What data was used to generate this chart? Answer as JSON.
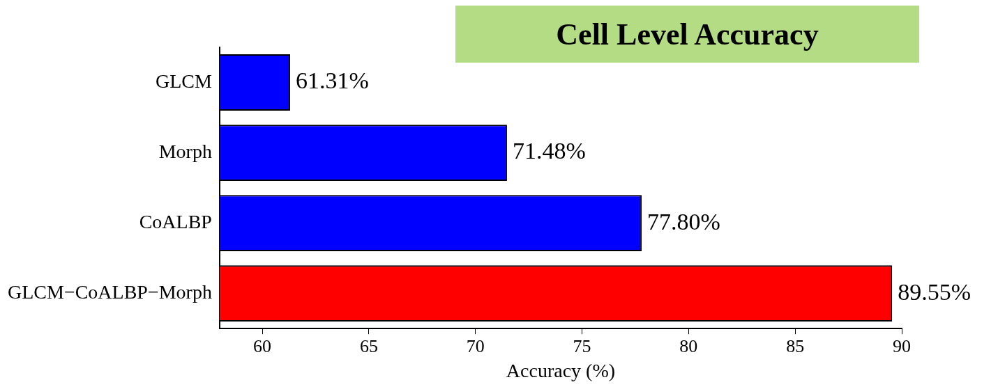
{
  "chart_data": {
    "type": "bar",
    "orientation": "horizontal",
    "title": "Cell Level Accuracy",
    "xlabel": "Accuracy (%)",
    "categories": [
      "GLCM",
      "Morph",
      "CoALBP",
      "GLCM−CoALBP−Morph"
    ],
    "values": [
      61.31,
      71.48,
      77.8,
      89.55
    ],
    "colors": [
      "#0000ff",
      "#0000ff",
      "#0000ff",
      "#ff0000"
    ],
    "value_labels": [
      "61.31%",
      "71.48%",
      "77.80%",
      "89.55%"
    ],
    "xlim": [
      58,
      90
    ],
    "xticks": [
      60,
      65,
      70,
      75,
      80,
      85,
      90
    ],
    "grid": false,
    "legend": false
  }
}
